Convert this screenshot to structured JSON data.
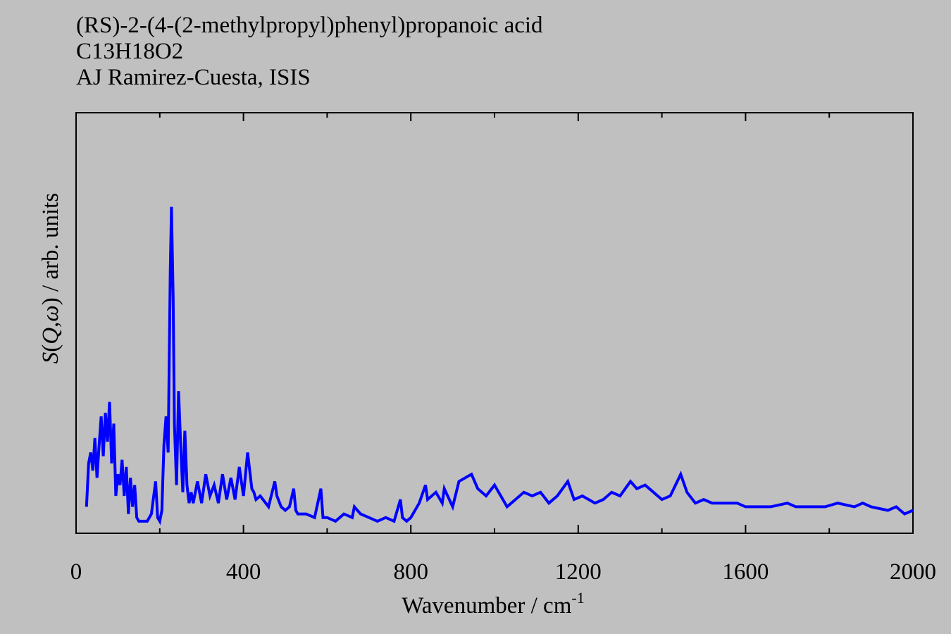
{
  "header": {
    "line1": "(RS)-2-(4-(2-methylpropyl)phenyl)propanoic acid",
    "line2": "C13H18O2",
    "line3": "AJ Ramirez-Cuesta, ISIS"
  },
  "chart_data": {
    "type": "line",
    "title": "(RS)-2-(4-(2-methylpropyl)phenyl)propanoic acid",
    "xlabel": "Wavenumber / cm-1",
    "ylabel": "S(Q,ω) / arb. units",
    "xlim": [
      0,
      2000
    ],
    "ylim": [
      0,
      100
    ],
    "xticks": [
      0,
      400,
      800,
      1200,
      1600,
      2000
    ],
    "grid": false,
    "line_color": "#0000ff",
    "series": [
      {
        "x": [
          25,
          30,
          35,
          40,
          45,
          50,
          55,
          60,
          65,
          70,
          75,
          80,
          85,
          90,
          95,
          100,
          105,
          110,
          115,
          120,
          125,
          130,
          135,
          140,
          145,
          150,
          160,
          170,
          180,
          190,
          195,
          200,
          205,
          210,
          215,
          220,
          225,
          228,
          232,
          235,
          240,
          245,
          250,
          255,
          260,
          265,
          270,
          275,
          280,
          290,
          300,
          310,
          320,
          330,
          340,
          350,
          360,
          370,
          380,
          390,
          400,
          410,
          420,
          425,
          430,
          440,
          460,
          475,
          480,
          490,
          500,
          510,
          520,
          525,
          530,
          550,
          570,
          585,
          590,
          600,
          620,
          640,
          660,
          665,
          680,
          700,
          720,
          740,
          760,
          775,
          780,
          790,
          800,
          820,
          835,
          840,
          860,
          875,
          880,
          900,
          915,
          930,
          945,
          960,
          980,
          1000,
          1010,
          1030,
          1050,
          1070,
          1090,
          1110,
          1130,
          1150,
          1175,
          1190,
          1210,
          1240,
          1260,
          1280,
          1300,
          1325,
          1340,
          1360,
          1380,
          1400,
          1420,
          1445,
          1460,
          1480,
          1500,
          1520,
          1550,
          1580,
          1600,
          1630,
          1660,
          1700,
          1720,
          1750,
          1790,
          1820,
          1860,
          1880,
          1900,
          1940,
          1960,
          1980,
          2000
        ],
        "y": [
          5,
          17,
          20,
          15,
          24,
          13,
          22,
          30,
          19,
          31,
          23,
          34,
          17,
          28,
          8,
          14,
          11,
          18,
          8,
          16,
          3,
          13,
          5,
          11,
          2,
          1,
          1,
          1,
          3,
          12,
          2,
          1,
          4,
          22,
          30,
          20,
          70,
          88,
          63,
          28,
          11,
          37,
          22,
          9,
          26,
          11,
          6,
          9,
          6,
          12,
          6,
          14,
          8,
          11,
          6,
          14,
          7,
          13,
          7,
          16,
          8,
          20,
          10,
          9,
          7,
          8,
          5,
          12,
          8,
          5,
          4,
          5,
          10,
          4,
          3,
          3,
          2,
          10,
          2,
          2,
          1,
          3,
          2,
          5,
          3,
          2,
          1,
          2,
          1,
          7,
          2,
          1,
          2,
          6,
          11,
          7,
          9,
          6,
          10,
          5,
          12,
          13,
          14,
          10,
          8,
          11,
          9,
          5,
          7,
          9,
          8,
          9,
          6,
          8,
          12,
          7,
          8,
          6,
          7,
          9,
          8,
          12,
          10,
          11,
          9,
          7,
          8,
          14,
          9,
          6,
          7,
          6,
          6,
          6,
          5,
          5,
          5,
          6,
          5,
          5,
          5,
          6,
          5,
          6,
          5,
          4,
          5,
          3,
          4
        ]
      }
    ]
  }
}
